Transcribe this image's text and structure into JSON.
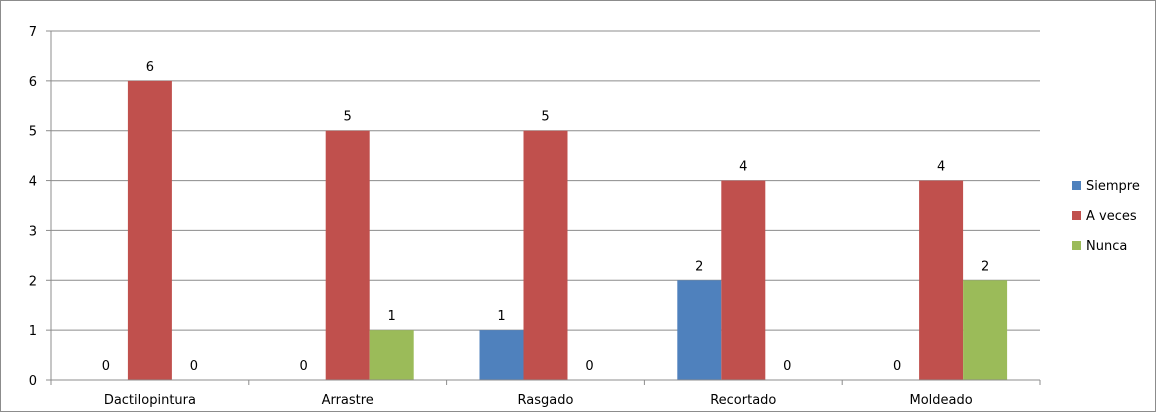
{
  "chart_data": {
    "type": "bar",
    "title": "",
    "xlabel": "",
    "ylabel": "",
    "categories": [
      "Dactilopintura",
      "Arrastre",
      "Rasgado",
      "Recortado",
      "Moldeado"
    ],
    "series": [
      {
        "name": "Siempre",
        "values": [
          0,
          0,
          1,
          2,
          0
        ],
        "color": "#4F81BD"
      },
      {
        "name": "A veces",
        "values": [
          6,
          5,
          5,
          4,
          4
        ],
        "color": "#C0504D"
      },
      {
        "name": "Nunca",
        "values": [
          0,
          1,
          0,
          0,
          2
        ],
        "color": "#9BBB59"
      }
    ],
    "ylim": [
      0,
      7
    ],
    "yticks": [
      0,
      1,
      2,
      3,
      4,
      5,
      6,
      7
    ],
    "grid": true,
    "legend_position": "right",
    "data_labels": true
  }
}
